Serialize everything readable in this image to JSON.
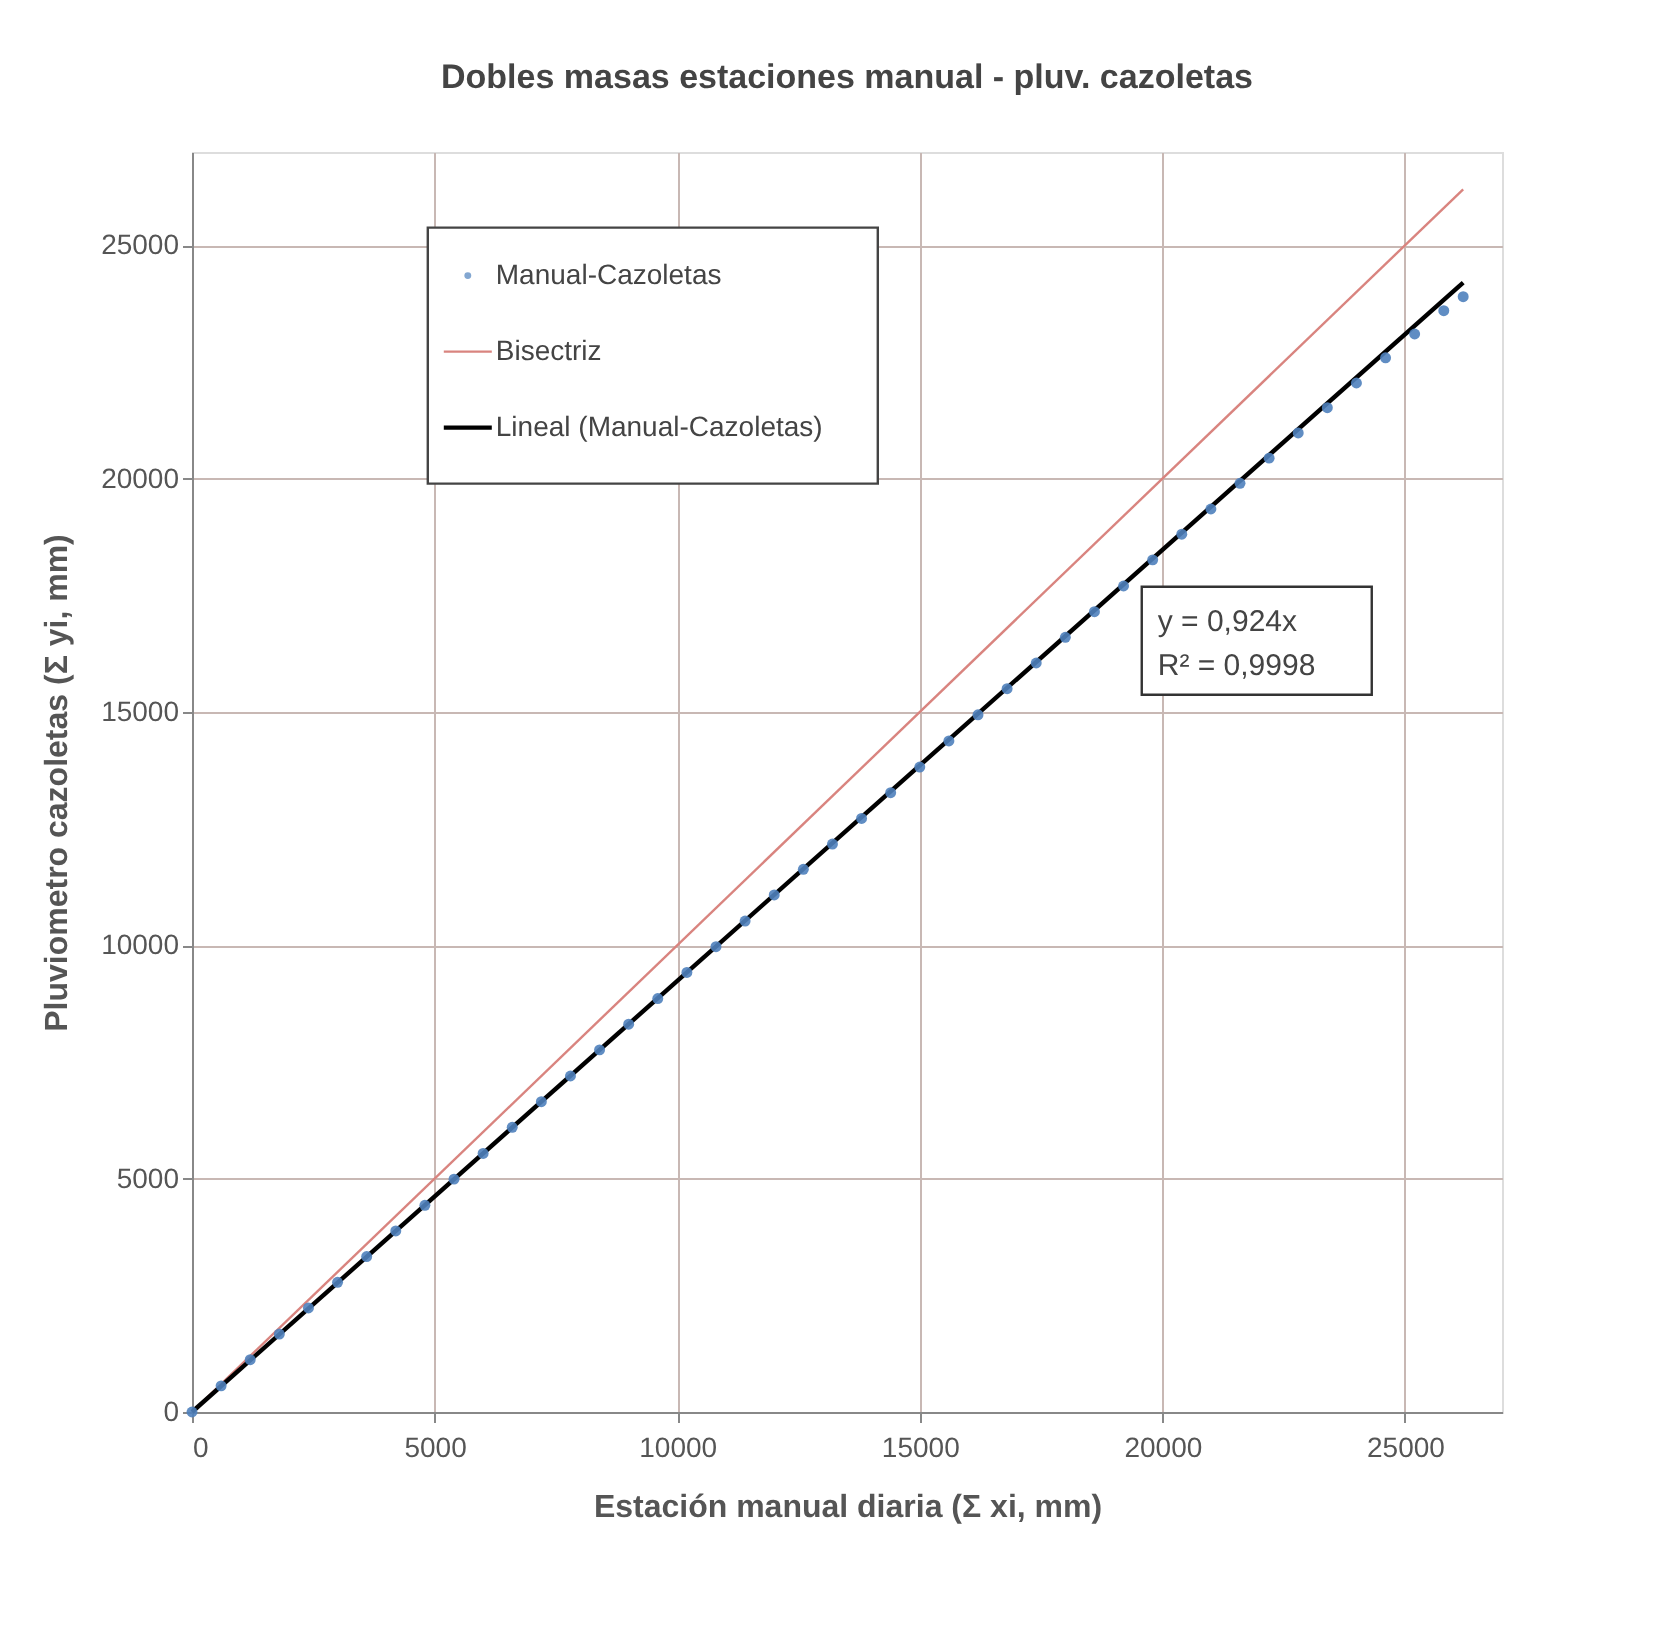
{
  "chart_data": {
    "type": "scatter",
    "title": "Dobles masas estaciones manual - pluv. cazoletas",
    "xlabel": "Estación manual diaria (Σ xi, mm)",
    "ylabel": "Pluviometro cazoletas (Σ yi, mm)",
    "xlim": [
      0,
      27000
    ],
    "ylim": [
      0,
      27000
    ],
    "xticks": [
      0,
      5000,
      10000,
      15000,
      20000,
      25000
    ],
    "yticks": [
      0,
      5000,
      10000,
      15000,
      20000,
      25000
    ],
    "grid": true,
    "legend": "top left",
    "annotations": [
      "y = 0,924x",
      "R² = 0,9998"
    ],
    "series": [
      {
        "name": "Manual-Cazoletas",
        "marker": "circle",
        "color": "#4f81bd",
        "x": [
          0,
          600,
          1200,
          1800,
          2400,
          3000,
          3600,
          4200,
          4800,
          5400,
          6000,
          6600,
          7200,
          7800,
          8400,
          9000,
          9600,
          10200,
          10800,
          11400,
          12000,
          12600,
          13200,
          13800,
          14400,
          15000,
          15600,
          16200,
          16800,
          17400,
          18000,
          18600,
          19200,
          19800,
          20400,
          21000,
          21600,
          22200,
          22800,
          23400,
          24000,
          24600,
          25200,
          25800,
          26200
        ],
        "values": [
          0,
          560,
          1120,
          1670,
          2230,
          2780,
          3330,
          3880,
          4430,
          4990,
          5540,
          6100,
          6650,
          7200,
          7760,
          8310,
          8860,
          9420,
          9970,
          10520,
          11080,
          11630,
          12170,
          12720,
          13270,
          13820,
          14380,
          14940,
          15500,
          16050,
          16600,
          17150,
          17700,
          18260,
          18810,
          19350,
          19900,
          20440,
          20980,
          21520,
          22050,
          22590,
          23100,
          23600,
          23900
        ]
      },
      {
        "name": "Bisectriz",
        "type": "line",
        "color": "#d9847f",
        "x": [
          0,
          26200
        ],
        "values": [
          0,
          26200
        ]
      },
      {
        "name": "Lineal (Manual-Cazoletas)",
        "type": "line",
        "color": "#000000",
        "x": [
          0,
          26200
        ],
        "values": [
          0,
          24200
        ]
      }
    ]
  }
}
